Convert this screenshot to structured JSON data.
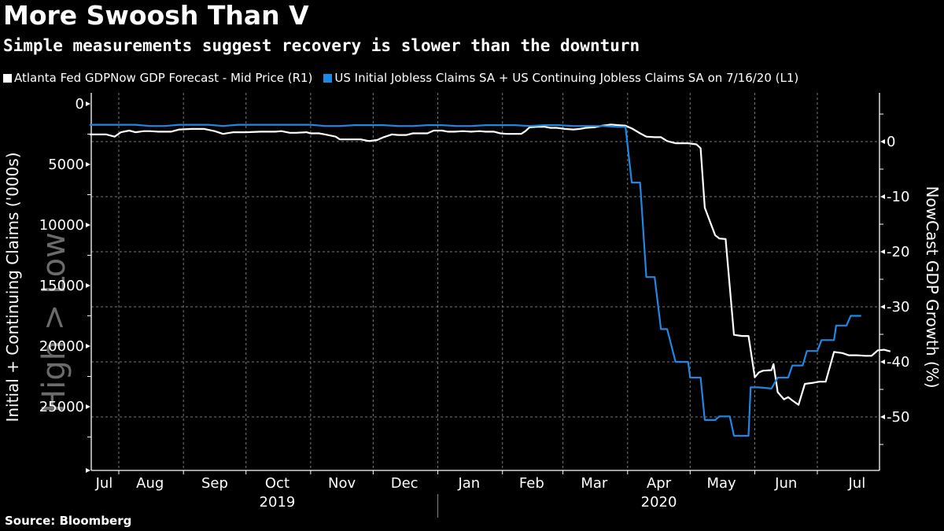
{
  "title": "More Swoosh Than V",
  "subtitle": "Simple measurements suggest recovery is slower than the downturn",
  "source": "Source: Bloomberg",
  "colors": {
    "background": "#000000",
    "gdp_series": "#ffffff",
    "claims_series": "#1e88e5",
    "grid": "#777777",
    "axis": "#ffffff",
    "watermark": "#6b6b6b"
  },
  "chart_data": {
    "type": "line",
    "title": "More Swoosh Than V",
    "subtitle": "Simple measurements suggest recovery is slower than the downturn",
    "legend_position": "top-left",
    "legend": [
      "Atlanta Fed GDPNow GDP Forecast - Mid Price (R1)",
      "US Initial Jobless Claims SA + US Continuing Jobless Claims SA on 7/16/20 (L1)"
    ],
    "x_axis": {
      "type": "date",
      "range": [
        "2019-07-18",
        "2020-07-31"
      ],
      "month_labels": [
        "Jul",
        "Aug",
        "Sep",
        "Oct",
        "Nov",
        "Dec",
        "Jan",
        "Feb",
        "Mar",
        "Apr",
        "May",
        "Jun",
        "Jul"
      ],
      "month_label_dates": [
        "2019-07-25",
        "2019-08-16",
        "2019-09-16",
        "2019-10-16",
        "2019-11-16",
        "2019-12-16",
        "2020-01-16",
        "2020-02-15",
        "2020-03-16",
        "2020-04-16",
        "2020-05-16",
        "2020-06-16",
        "2020-07-20"
      ],
      "month_boundaries": [
        "2019-08-01",
        "2019-09-01",
        "2019-10-01",
        "2019-11-01",
        "2019-12-01",
        "2020-01-01",
        "2020-02-01",
        "2020-03-01",
        "2020-04-01",
        "2020-05-01",
        "2020-06-01",
        "2020-07-01"
      ],
      "year_labels": [
        {
          "label": "2019",
          "center": "2019-10-16"
        },
        {
          "label": "2020",
          "center": "2020-04-16"
        }
      ],
      "year_divider": "2020-01-01"
    },
    "y_left": {
      "label": "Initial + Continuing Claims ('000s)",
      "inverted": true,
      "range": [
        0,
        30000
      ],
      "ticks": [
        0,
        5000,
        10000,
        15000,
        20000,
        25000
      ],
      "tick_labels": [
        "0",
        "5000",
        "10000",
        "15000",
        "20000",
        "25000"
      ],
      "minor_ticks": [
        2500,
        7500,
        12500,
        17500,
        22500,
        27500,
        30000
      ],
      "annotation": "High > Low"
    },
    "y_right": {
      "label": "NowCast GDP Growth (%)",
      "range": [
        -59.7,
        8.9
      ],
      "ticks": [
        0,
        -10,
        -20,
        -30,
        -40,
        -50
      ],
      "tick_labels": [
        "0",
        "-10",
        "-20",
        "-30",
        "-40",
        "-50"
      ],
      "minor_ticks": [
        5,
        -5,
        -15,
        -25,
        -35,
        -45,
        -55
      ]
    },
    "grid": true,
    "series": [
      {
        "name": "Atlanta Fed GDPNow GDP Forecast - Mid Price (R1)",
        "axis": "right",
        "color": "#ffffff",
        "points": [
          [
            "2019-07-18",
            1.3
          ],
          [
            "2019-07-26",
            1.3
          ],
          [
            "2019-07-30",
            0.9
          ],
          [
            "2019-08-02",
            1.7
          ],
          [
            "2019-08-06",
            2.0
          ],
          [
            "2019-08-09",
            1.7
          ],
          [
            "2019-08-13",
            1.9
          ],
          [
            "2019-08-16",
            1.9
          ],
          [
            "2019-08-20",
            1.8
          ],
          [
            "2019-08-26",
            1.8
          ],
          [
            "2019-08-30",
            2.2
          ],
          [
            "2019-09-05",
            2.3
          ],
          [
            "2019-09-11",
            2.3
          ],
          [
            "2019-09-16",
            1.9
          ],
          [
            "2019-09-20",
            1.4
          ],
          [
            "2019-09-25",
            1.7
          ],
          [
            "2019-10-01",
            1.7
          ],
          [
            "2019-10-08",
            1.8
          ],
          [
            "2019-10-15",
            1.8
          ],
          [
            "2019-10-18",
            1.9
          ],
          [
            "2019-10-22",
            1.6
          ],
          [
            "2019-10-25",
            1.6
          ],
          [
            "2019-10-30",
            1.7
          ],
          [
            "2019-11-01",
            1.5
          ],
          [
            "2019-11-05",
            1.5
          ],
          [
            "2019-11-08",
            1.3
          ],
          [
            "2019-11-13",
            0.9
          ],
          [
            "2019-11-15",
            0.4
          ],
          [
            "2019-11-19",
            0.4
          ],
          [
            "2019-11-25",
            0.4
          ],
          [
            "2019-11-29",
            0.1
          ],
          [
            "2019-12-03",
            0.3
          ],
          [
            "2019-12-06",
            0.8
          ],
          [
            "2019-12-10",
            1.3
          ],
          [
            "2019-12-13",
            1.2
          ],
          [
            "2019-12-17",
            1.2
          ],
          [
            "2019-12-20",
            1.5
          ],
          [
            "2019-12-27",
            1.5
          ],
          [
            "2019-12-30",
            2.0
          ],
          [
            "2020-01-03",
            2.0
          ],
          [
            "2020-01-06",
            1.8
          ],
          [
            "2020-01-09",
            1.8
          ],
          [
            "2020-01-13",
            1.9
          ],
          [
            "2020-01-17",
            1.8
          ],
          [
            "2020-01-21",
            1.9
          ],
          [
            "2020-01-24",
            1.8
          ],
          [
            "2020-01-28",
            1.8
          ],
          [
            "2020-01-31",
            1.5
          ],
          [
            "2020-02-03",
            1.4
          ],
          [
            "2020-02-06",
            1.4
          ],
          [
            "2020-02-10",
            1.4
          ],
          [
            "2020-02-12",
            1.9
          ],
          [
            "2020-02-14",
            2.6
          ],
          [
            "2020-02-18",
            2.7
          ],
          [
            "2020-02-21",
            2.7
          ],
          [
            "2020-02-24",
            2.5
          ],
          [
            "2020-02-27",
            2.5
          ],
          [
            "2020-03-02",
            2.3
          ],
          [
            "2020-03-06",
            2.2
          ],
          [
            "2020-03-09",
            2.3
          ],
          [
            "2020-03-12",
            2.5
          ],
          [
            "2020-03-16",
            2.6
          ],
          [
            "2020-03-20",
            2.9
          ],
          [
            "2020-03-24",
            3.1
          ],
          [
            "2020-03-27",
            3.0
          ],
          [
            "2020-03-31",
            2.9
          ],
          [
            "2020-04-03",
            2.4
          ],
          [
            "2020-04-07",
            1.5
          ],
          [
            "2020-04-10",
            0.9
          ],
          [
            "2020-04-14",
            0.8
          ],
          [
            "2020-04-17",
            0.8
          ],
          [
            "2020-04-20",
            0.1
          ],
          [
            "2020-04-24",
            -0.3
          ],
          [
            "2020-04-27",
            -0.3
          ],
          [
            "2020-04-30",
            -0.3
          ],
          [
            "2020-05-04",
            -0.5
          ],
          [
            "2020-05-06",
            -1.2
          ],
          [
            "2020-05-08",
            -12.0
          ],
          [
            "2020-05-13",
            -17.0
          ],
          [
            "2020-05-15",
            -17.6
          ],
          [
            "2020-05-18",
            -17.7
          ],
          [
            "2020-05-22",
            -35.1
          ],
          [
            "2020-05-26",
            -35.3
          ],
          [
            "2020-05-29",
            -35.3
          ],
          [
            "2020-06-01",
            -42.8
          ],
          [
            "2020-06-03",
            -41.9
          ],
          [
            "2020-06-05",
            -41.6
          ],
          [
            "2020-06-09",
            -41.5
          ],
          [
            "2020-06-10",
            -40.4
          ],
          [
            "2020-06-12",
            -45.5
          ],
          [
            "2020-06-15",
            -46.8
          ],
          [
            "2020-06-17",
            -46.4
          ],
          [
            "2020-06-19",
            -47.0
          ],
          [
            "2020-06-22",
            -47.8
          ],
          [
            "2020-06-25",
            -44.0
          ],
          [
            "2020-06-29",
            -43.8
          ],
          [
            "2020-07-02",
            -43.6
          ],
          [
            "2020-07-05",
            -43.6
          ],
          [
            "2020-07-09",
            -38.2
          ],
          [
            "2020-07-13",
            -38.4
          ],
          [
            "2020-07-16",
            -38.8
          ],
          [
            "2020-07-20",
            -38.8
          ],
          [
            "2020-07-24",
            -38.9
          ],
          [
            "2020-07-27",
            -38.9
          ],
          [
            "2020-07-30",
            -37.9
          ],
          [
            "2020-08-02",
            -37.8
          ],
          [
            "2020-08-05",
            -38.1
          ]
        ]
      },
      {
        "name": "US Initial Jobless Claims SA + US Continuing Jobless Claims SA on 7/16/20 (L1)",
        "axis": "left",
        "color": "#1e88e5",
        "points": [
          [
            "2019-07-18",
            1730
          ],
          [
            "2019-08-09",
            1730
          ],
          [
            "2019-08-16",
            1830
          ],
          [
            "2019-08-23",
            1830
          ],
          [
            "2019-08-30",
            1730
          ],
          [
            "2019-09-13",
            1730
          ],
          [
            "2019-09-20",
            1830
          ],
          [
            "2019-09-27",
            1730
          ],
          [
            "2019-11-01",
            1730
          ],
          [
            "2019-11-08",
            1830
          ],
          [
            "2019-11-15",
            1830
          ],
          [
            "2019-11-22",
            1760
          ],
          [
            "2019-12-06",
            1760
          ],
          [
            "2019-12-13",
            1830
          ],
          [
            "2019-12-20",
            1830
          ],
          [
            "2019-12-27",
            1760
          ],
          [
            "2020-01-03",
            1760
          ],
          [
            "2020-01-10",
            1830
          ],
          [
            "2020-01-17",
            1830
          ],
          [
            "2020-01-24",
            1760
          ],
          [
            "2020-02-07",
            1760
          ],
          [
            "2020-02-14",
            1830
          ],
          [
            "2020-02-21",
            1760
          ],
          [
            "2020-02-28",
            1760
          ],
          [
            "2020-03-06",
            1830
          ],
          [
            "2020-03-13",
            1830
          ],
          [
            "2020-03-20",
            1830
          ],
          [
            "2020-03-27",
            1900
          ],
          [
            "2020-03-31",
            1900
          ],
          [
            "2020-04-03",
            6500
          ],
          [
            "2020-04-07",
            6500
          ],
          [
            "2020-04-10",
            14300
          ],
          [
            "2020-04-14",
            14300
          ],
          [
            "2020-04-17",
            18600
          ],
          [
            "2020-04-20",
            18600
          ],
          [
            "2020-04-24",
            21300
          ],
          [
            "2020-04-30",
            21300
          ],
          [
            "2020-05-01",
            22600
          ],
          [
            "2020-05-06",
            22600
          ],
          [
            "2020-05-08",
            26100
          ],
          [
            "2020-05-13",
            26100
          ],
          [
            "2020-05-15",
            25800
          ],
          [
            "2020-05-20",
            25800
          ],
          [
            "2020-05-22",
            27400
          ],
          [
            "2020-05-29",
            27400
          ],
          [
            "2020-05-30",
            23400
          ],
          [
            "2020-06-03",
            23400
          ],
          [
            "2020-06-09",
            23500
          ],
          [
            "2020-06-12",
            22600
          ],
          [
            "2020-06-17",
            22600
          ],
          [
            "2020-06-19",
            21600
          ],
          [
            "2020-06-24",
            21600
          ],
          [
            "2020-06-26",
            20400
          ],
          [
            "2020-07-01",
            20400
          ],
          [
            "2020-07-03",
            19500
          ],
          [
            "2020-07-09",
            19500
          ],
          [
            "2020-07-10",
            18300
          ],
          [
            "2020-07-15",
            18300
          ],
          [
            "2020-07-17",
            17500
          ],
          [
            "2020-07-22",
            17500
          ]
        ]
      }
    ]
  }
}
